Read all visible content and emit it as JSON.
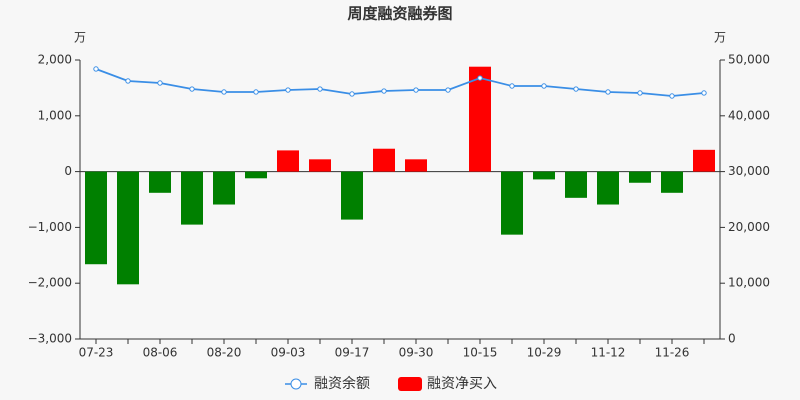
{
  "chart_data": {
    "type": "bar",
    "title": "周度融资融券图",
    "y_unit": "万",
    "y2_unit": "万",
    "categories": [
      "07-23",
      null,
      "08-06",
      null,
      "08-20",
      null,
      "09-03",
      null,
      "09-17",
      null,
      "09-30",
      null,
      "10-15",
      null,
      "10-29",
      null,
      "11-12",
      null,
      "11-26",
      null
    ],
    "series": [
      {
        "name": "融资余额",
        "type": "line",
        "axis": "y2",
        "color": "#3a8ee6",
        "values": [
          48390,
          46240,
          45880,
          44800,
          44270,
          44270,
          44620,
          44800,
          43910,
          44440,
          44620,
          44620,
          46770,
          45340,
          45340,
          44800,
          44270,
          44090,
          43550,
          44090
        ]
      },
      {
        "name": "融资净买入",
        "type": "bar",
        "axis": "y",
        "color": "#ff0000",
        "negative_color": "#008000",
        "values": [
          -1660,
          -2020,
          -380,
          -950,
          -590,
          -120,
          380,
          220,
          -860,
          410,
          220,
          0,
          1880,
          -1130,
          -140,
          -470,
          -590,
          -200,
          -380,
          390
        ]
      }
    ],
    "ylim": [
      -3000,
      2000
    ],
    "yticks": [
      {
        "value": -3000,
        "label": "−3,000"
      },
      {
        "value": -2000,
        "label": "−2,000"
      },
      {
        "value": -1000,
        "label": "−1,000"
      },
      0,
      {
        "value": 1000,
        "label": "1,000"
      },
      {
        "value": 2000,
        "label": "2,000"
      }
    ],
    "y2lim": [
      0,
      50000
    ],
    "y2ticks": [
      0,
      {
        "value": 10000,
        "label": "10,000"
      },
      {
        "value": 20000,
        "label": "20,000"
      },
      {
        "value": 30000,
        "label": "30,000"
      },
      {
        "value": 40000,
        "label": "40,000"
      },
      {
        "value": 50000,
        "label": "50,000"
      }
    ],
    "grid": false,
    "legend": "bottom"
  }
}
